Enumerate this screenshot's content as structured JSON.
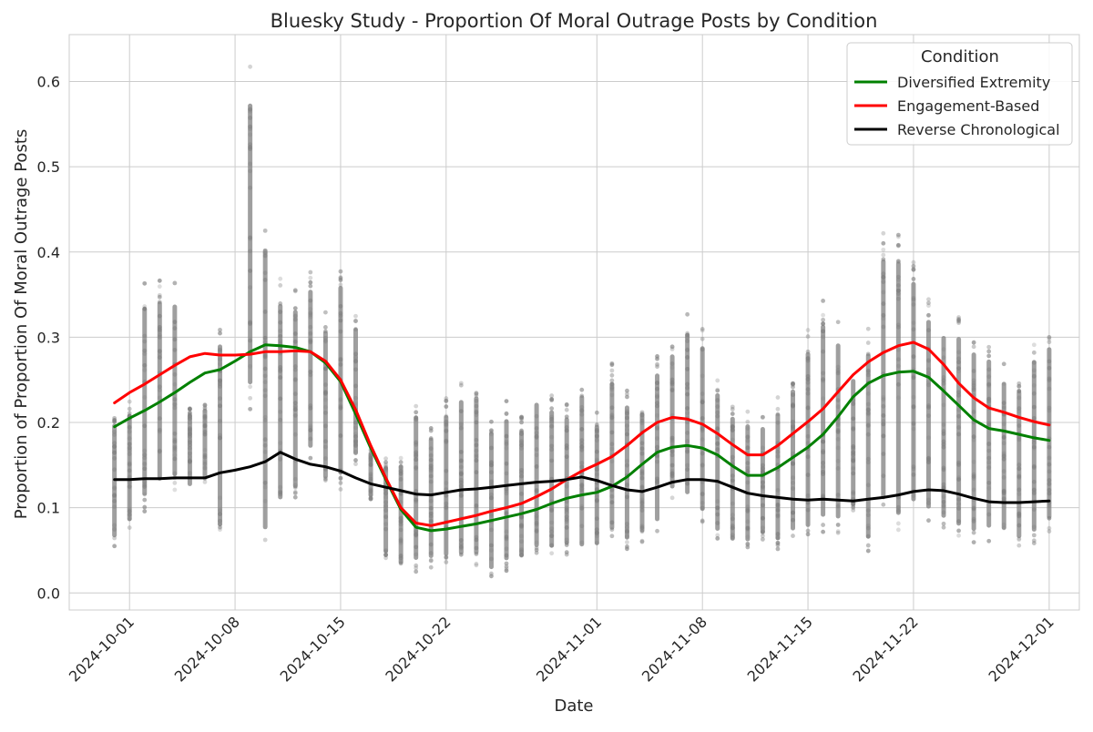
{
  "chart_data": {
    "type": "line",
    "title": "Bluesky Study - Proportion Of Moral Outrage Posts by Condition",
    "xlabel": "Date",
    "ylabel": "Proportion of Proportion Of Moral Outrage Posts",
    "x_ticks": [
      "2024-10-01",
      "2024-10-08",
      "2024-10-15",
      "2024-10-22",
      "2024-11-01",
      "2024-11-08",
      "2024-11-15",
      "2024-11-22",
      "2024-12-01"
    ],
    "y_ticks": [
      "0.0",
      "0.1",
      "0.2",
      "0.3",
      "0.4",
      "0.5",
      "0.6"
    ],
    "xlim": [
      "2024-09-27",
      "2024-12-03"
    ],
    "ylim": [
      -0.02,
      0.655
    ],
    "grid": true,
    "legend": {
      "title": "Condition",
      "placement": "top-right",
      "entries": [
        "Diversified Extremity",
        "Engagement-Based",
        "Reverse Chronological"
      ]
    },
    "colors": {
      "Diversified Extremity": "#008000",
      "Engagement-Based": "#ff0000",
      "Reverse Chronological": "#000000",
      "scatter": "#808080",
      "grid": "#cccccc"
    },
    "series": [
      {
        "name": "Diversified Extremity",
        "x": [
          "2024-09-30",
          "2024-10-01",
          "2024-10-02",
          "2024-10-03",
          "2024-10-04",
          "2024-10-05",
          "2024-10-06",
          "2024-10-07",
          "2024-10-08",
          "2024-10-09",
          "2024-10-10",
          "2024-10-11",
          "2024-10-12",
          "2024-10-13",
          "2024-10-14",
          "2024-10-15",
          "2024-10-16",
          "2024-10-17",
          "2024-10-18",
          "2024-10-19",
          "2024-10-20",
          "2024-10-21",
          "2024-10-22",
          "2024-10-23",
          "2024-10-24",
          "2024-10-25",
          "2024-10-26",
          "2024-10-27",
          "2024-10-28",
          "2024-10-29",
          "2024-10-30",
          "2024-10-31",
          "2024-11-01",
          "2024-11-02",
          "2024-11-03",
          "2024-11-04",
          "2024-11-05",
          "2024-11-06",
          "2024-11-07",
          "2024-11-08",
          "2024-11-09",
          "2024-11-10",
          "2024-11-11",
          "2024-11-12",
          "2024-11-13",
          "2024-11-14",
          "2024-11-15",
          "2024-11-16",
          "2024-11-17",
          "2024-11-18",
          "2024-11-19",
          "2024-11-20",
          "2024-11-21",
          "2024-11-22",
          "2024-11-23",
          "2024-11-24",
          "2024-11-25",
          "2024-11-26",
          "2024-11-27",
          "2024-11-28",
          "2024-11-29",
          "2024-11-30",
          "2024-12-01"
        ],
        "y": [
          0.195,
          0.205,
          0.214,
          0.224,
          0.235,
          0.247,
          0.258,
          0.262,
          0.272,
          0.283,
          0.291,
          0.29,
          0.288,
          0.283,
          0.27,
          0.248,
          0.21,
          0.17,
          0.133,
          0.098,
          0.077,
          0.073,
          0.075,
          0.078,
          0.081,
          0.085,
          0.089,
          0.093,
          0.098,
          0.105,
          0.111,
          0.115,
          0.118,
          0.125,
          0.136,
          0.151,
          0.165,
          0.171,
          0.173,
          0.17,
          0.162,
          0.149,
          0.138,
          0.138,
          0.147,
          0.159,
          0.171,
          0.186,
          0.207,
          0.23,
          0.246,
          0.255,
          0.259,
          0.26,
          0.253,
          0.237,
          0.22,
          0.203,
          0.193,
          0.19,
          0.186,
          0.182,
          0.179
        ]
      },
      {
        "name": "Engagement-Based",
        "x": [
          "2024-09-30",
          "2024-10-01",
          "2024-10-02",
          "2024-10-03",
          "2024-10-04",
          "2024-10-05",
          "2024-10-06",
          "2024-10-07",
          "2024-10-08",
          "2024-10-09",
          "2024-10-10",
          "2024-10-11",
          "2024-10-12",
          "2024-10-13",
          "2024-10-14",
          "2024-10-15",
          "2024-10-16",
          "2024-10-17",
          "2024-10-18",
          "2024-10-19",
          "2024-10-20",
          "2024-10-21",
          "2024-10-22",
          "2024-10-23",
          "2024-10-24",
          "2024-10-25",
          "2024-10-26",
          "2024-10-27",
          "2024-10-28",
          "2024-10-29",
          "2024-10-30",
          "2024-10-31",
          "2024-11-01",
          "2024-11-02",
          "2024-11-03",
          "2024-11-04",
          "2024-11-05",
          "2024-11-06",
          "2024-11-07",
          "2024-11-08",
          "2024-11-09",
          "2024-11-10",
          "2024-11-11",
          "2024-11-12",
          "2024-11-13",
          "2024-11-14",
          "2024-11-15",
          "2024-11-16",
          "2024-11-17",
          "2024-11-18",
          "2024-11-19",
          "2024-11-20",
          "2024-11-21",
          "2024-11-22",
          "2024-11-23",
          "2024-11-24",
          "2024-11-25",
          "2024-11-26",
          "2024-11-27",
          "2024-11-28",
          "2024-11-29",
          "2024-11-30",
          "2024-12-01"
        ],
        "y": [
          0.223,
          0.235,
          0.245,
          0.256,
          0.267,
          0.277,
          0.281,
          0.279,
          0.279,
          0.28,
          0.283,
          0.283,
          0.284,
          0.283,
          0.272,
          0.25,
          0.215,
          0.173,
          0.135,
          0.1,
          0.082,
          0.079,
          0.083,
          0.087,
          0.091,
          0.096,
          0.1,
          0.105,
          0.113,
          0.122,
          0.133,
          0.143,
          0.151,
          0.16,
          0.173,
          0.188,
          0.2,
          0.206,
          0.204,
          0.198,
          0.187,
          0.174,
          0.162,
          0.162,
          0.173,
          0.187,
          0.201,
          0.216,
          0.236,
          0.256,
          0.271,
          0.282,
          0.29,
          0.294,
          0.286,
          0.268,
          0.246,
          0.229,
          0.217,
          0.212,
          0.206,
          0.201,
          0.197
        ]
      },
      {
        "name": "Reverse Chronological",
        "x": [
          "2024-09-30",
          "2024-10-01",
          "2024-10-02",
          "2024-10-03",
          "2024-10-04",
          "2024-10-05",
          "2024-10-06",
          "2024-10-07",
          "2024-10-08",
          "2024-10-09",
          "2024-10-10",
          "2024-10-11",
          "2024-10-12",
          "2024-10-13",
          "2024-10-14",
          "2024-10-15",
          "2024-10-16",
          "2024-10-17",
          "2024-10-18",
          "2024-10-19",
          "2024-10-20",
          "2024-10-21",
          "2024-10-22",
          "2024-10-23",
          "2024-10-24",
          "2024-10-25",
          "2024-10-26",
          "2024-10-27",
          "2024-10-28",
          "2024-10-29",
          "2024-10-30",
          "2024-10-31",
          "2024-11-01",
          "2024-11-02",
          "2024-11-03",
          "2024-11-04",
          "2024-11-05",
          "2024-11-06",
          "2024-11-07",
          "2024-11-08",
          "2024-11-09",
          "2024-11-10",
          "2024-11-11",
          "2024-11-12",
          "2024-11-13",
          "2024-11-14",
          "2024-11-15",
          "2024-11-16",
          "2024-11-17",
          "2024-11-18",
          "2024-11-19",
          "2024-11-20",
          "2024-11-21",
          "2024-11-22",
          "2024-11-23",
          "2024-11-24",
          "2024-11-25",
          "2024-11-26",
          "2024-11-27",
          "2024-11-28",
          "2024-11-29",
          "2024-11-30",
          "2024-12-01"
        ],
        "y": [
          0.133,
          0.133,
          0.134,
          0.134,
          0.135,
          0.135,
          0.135,
          0.141,
          0.144,
          0.148,
          0.154,
          0.165,
          0.157,
          0.151,
          0.148,
          0.143,
          0.135,
          0.128,
          0.124,
          0.12,
          0.116,
          0.115,
          0.118,
          0.121,
          0.122,
          0.124,
          0.126,
          0.128,
          0.13,
          0.131,
          0.133,
          0.136,
          0.132,
          0.126,
          0.121,
          0.119,
          0.124,
          0.13,
          0.133,
          0.133,
          0.131,
          0.124,
          0.117,
          0.114,
          0.112,
          0.11,
          0.109,
          0.11,
          0.109,
          0.108,
          0.11,
          0.112,
          0.115,
          0.119,
          0.121,
          0.12,
          0.116,
          0.111,
          0.107,
          0.106,
          0.106,
          0.107,
          0.108
        ]
      }
    ],
    "scatter_columns": [
      {
        "x": "2024-09-30",
        "lo": 0.055,
        "hi": 0.215
      },
      {
        "x": "2024-10-01",
        "lo": 0.075,
        "hi": 0.225
      },
      {
        "x": "2024-10-02",
        "lo": 0.095,
        "hi": 0.365
      },
      {
        "x": "2024-10-03",
        "lo": 0.115,
        "hi": 0.37
      },
      {
        "x": "2024-10-04",
        "lo": 0.12,
        "hi": 0.365
      },
      {
        "x": "2024-10-05",
        "lo": 0.12,
        "hi": 0.22
      },
      {
        "x": "2024-10-06",
        "lo": 0.13,
        "hi": 0.225
      },
      {
        "x": "2024-10-07",
        "lo": 0.06,
        "hi": 0.32
      },
      {
        "x": "2024-10-09",
        "lo": 0.215,
        "hi": 0.62
      },
      {
        "x": "2024-10-10",
        "lo": 0.045,
        "hi": 0.45
      },
      {
        "x": "2024-10-11",
        "lo": 0.09,
        "hi": 0.37
      },
      {
        "x": "2024-10-12",
        "lo": 0.105,
        "hi": 0.36
      },
      {
        "x": "2024-10-13",
        "lo": 0.155,
        "hi": 0.38
      },
      {
        "x": "2024-10-14",
        "lo": 0.12,
        "hi": 0.33
      },
      {
        "x": "2024-10-15",
        "lo": 0.12,
        "hi": 0.39
      },
      {
        "x": "2024-10-16",
        "lo": 0.15,
        "hi": 0.33
      },
      {
        "x": "2024-10-17",
        "lo": 0.11,
        "hi": 0.17
      },
      {
        "x": "2024-10-18",
        "lo": 0.04,
        "hi": 0.16
      },
      {
        "x": "2024-10-19",
        "lo": 0.025,
        "hi": 0.165
      },
      {
        "x": "2024-10-20",
        "lo": 0.025,
        "hi": 0.23
      },
      {
        "x": "2024-10-21",
        "lo": 0.03,
        "hi": 0.2
      },
      {
        "x": "2024-10-22",
        "lo": 0.03,
        "hi": 0.23
      },
      {
        "x": "2024-10-23",
        "lo": 0.03,
        "hi": 0.25
      },
      {
        "x": "2024-10-24",
        "lo": 0.03,
        "hi": 0.255
      },
      {
        "x": "2024-10-25",
        "lo": 0.015,
        "hi": 0.21
      },
      {
        "x": "2024-10-26",
        "lo": 0.025,
        "hi": 0.225
      },
      {
        "x": "2024-10-27",
        "lo": 0.03,
        "hi": 0.21
      },
      {
        "x": "2024-10-28",
        "lo": 0.04,
        "hi": 0.245
      },
      {
        "x": "2024-10-29",
        "lo": 0.04,
        "hi": 0.235
      },
      {
        "x": "2024-10-30",
        "lo": 0.045,
        "hi": 0.225
      },
      {
        "x": "2024-10-31",
        "lo": 0.04,
        "hi": 0.255
      },
      {
        "x": "2024-11-01",
        "lo": 0.045,
        "hi": 0.215
      },
      {
        "x": "2024-11-02",
        "lo": 0.06,
        "hi": 0.27
      },
      {
        "x": "2024-11-03",
        "lo": 0.05,
        "hi": 0.24
      },
      {
        "x": "2024-11-04",
        "lo": 0.06,
        "hi": 0.23
      },
      {
        "x": "2024-11-05",
        "lo": 0.07,
        "hi": 0.28
      },
      {
        "x": "2024-11-06",
        "lo": 0.11,
        "hi": 0.3
      },
      {
        "x": "2024-11-07",
        "lo": 0.1,
        "hi": 0.33
      },
      {
        "x": "2024-11-08",
        "lo": 0.08,
        "hi": 0.315
      },
      {
        "x": "2024-11-09",
        "lo": 0.06,
        "hi": 0.255
      },
      {
        "x": "2024-11-10",
        "lo": 0.05,
        "hi": 0.225
      },
      {
        "x": "2024-11-11",
        "lo": 0.05,
        "hi": 0.215
      },
      {
        "x": "2024-11-12",
        "lo": 0.06,
        "hi": 0.21
      },
      {
        "x": "2024-11-13",
        "lo": 0.05,
        "hi": 0.23
      },
      {
        "x": "2024-11-14",
        "lo": 0.06,
        "hi": 0.26
      },
      {
        "x": "2024-11-15",
        "lo": 0.06,
        "hi": 0.31
      },
      {
        "x": "2024-11-16",
        "lo": 0.07,
        "hi": 0.345
      },
      {
        "x": "2024-11-17",
        "lo": 0.07,
        "hi": 0.32
      },
      {
        "x": "2024-11-18",
        "lo": 0.09,
        "hi": 0.27
      },
      {
        "x": "2024-11-19",
        "lo": 0.045,
        "hi": 0.31
      },
      {
        "x": "2024-11-20",
        "lo": 0.085,
        "hi": 0.43
      },
      {
        "x": "2024-11-21",
        "lo": 0.065,
        "hi": 0.43
      },
      {
        "x": "2024-11-22",
        "lo": 0.085,
        "hi": 0.4
      },
      {
        "x": "2024-11-23",
        "lo": 0.08,
        "hi": 0.35
      },
      {
        "x": "2024-11-24",
        "lo": 0.07,
        "hi": 0.33
      },
      {
        "x": "2024-11-25",
        "lo": 0.06,
        "hi": 0.33
      },
      {
        "x": "2024-11-26",
        "lo": 0.055,
        "hi": 0.31
      },
      {
        "x": "2024-11-27",
        "lo": 0.06,
        "hi": 0.3
      },
      {
        "x": "2024-11-28",
        "lo": 0.06,
        "hi": 0.27
      },
      {
        "x": "2024-11-29",
        "lo": 0.05,
        "hi": 0.26
      },
      {
        "x": "2024-11-30",
        "lo": 0.055,
        "hi": 0.3
      },
      {
        "x": "2024-12-01",
        "lo": 0.07,
        "hi": 0.315
      }
    ]
  }
}
